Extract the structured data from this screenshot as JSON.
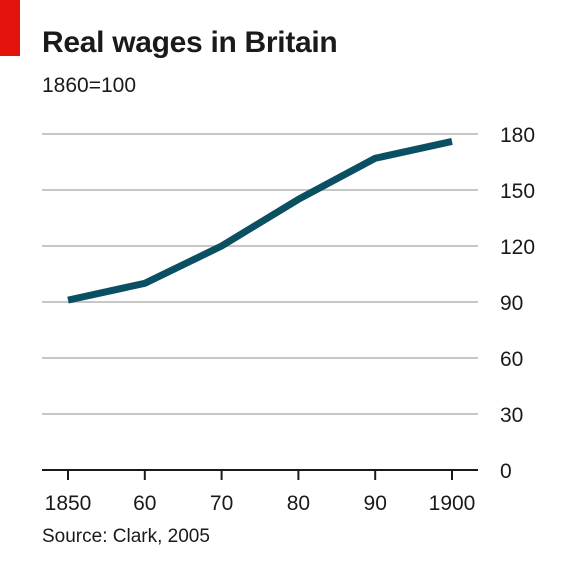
{
  "chart_data": {
    "type": "line",
    "title": "Real wages in Britain",
    "subtitle": "1860=100",
    "source": "Source: Clark, 2005",
    "x": [
      1850,
      1860,
      1870,
      1880,
      1890,
      1900
    ],
    "x_tick_values": [
      1850,
      1860,
      1870,
      1880,
      1890,
      1900
    ],
    "x_tick_labels": [
      "1850",
      "60",
      "70",
      "80",
      "90",
      "1900"
    ],
    "xlim": [
      1850,
      1900
    ],
    "series": [
      {
        "values": [
          91,
          100,
          120,
          145,
          167,
          176
        ]
      }
    ],
    "ylim": [
      0,
      180
    ],
    "y_ticks": [
      0,
      30,
      60,
      90,
      120,
      150,
      180
    ],
    "y_axis_side": "right",
    "grid": true,
    "line_color": "#0b4f63",
    "grid_color": "#c7c7c7",
    "axis_color": "#1a1a1a",
    "accent_color": "#e3120b"
  }
}
